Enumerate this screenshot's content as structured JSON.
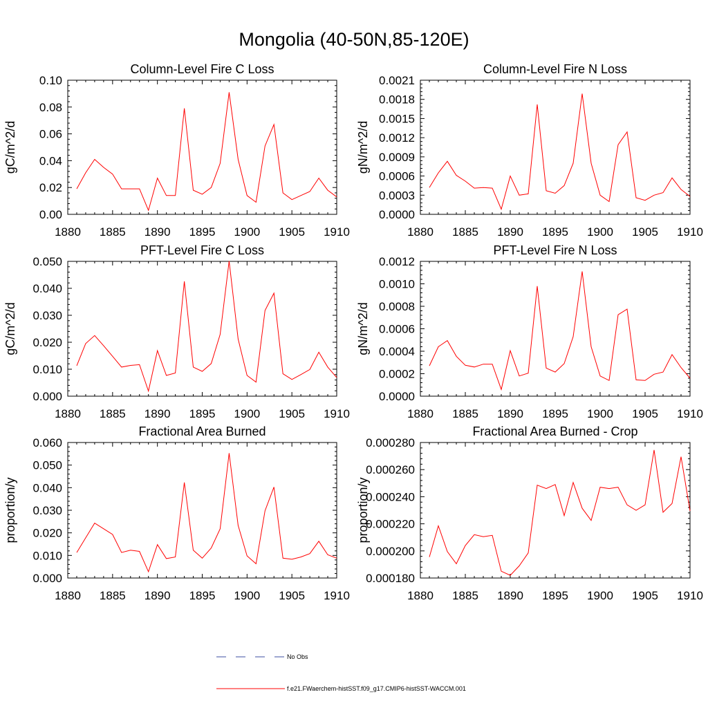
{
  "figure": {
    "title": "Mongolia (40-50N,85-120E)",
    "legend": [
      {
        "label": "No Obs",
        "color": "#3b4ea0",
        "style": "dashed"
      },
      {
        "label": "f.e21.FWaerchem-histSST.f09_g17.CMIP6-histSST-WACCM.001",
        "color": "#ff0000",
        "style": "solid"
      }
    ]
  },
  "chart_data": [
    {
      "type": "line",
      "title": "Column-Level Fire C Loss",
      "ylabel": "gC/m^2/d",
      "xlabel": "",
      "xlim": [
        1880,
        1910
      ],
      "ylim": [
        0,
        0.1
      ],
      "xticks": [
        1880,
        1885,
        1890,
        1895,
        1900,
        1905,
        1910
      ],
      "xtick_labels": [
        "1880",
        "1885",
        "1890",
        "1895",
        "1900",
        "1905",
        "1910"
      ],
      "yticks": [
        0,
        0.02,
        0.04,
        0.06,
        0.08,
        0.1
      ],
      "ytick_labels": [
        "0.00",
        "0.02",
        "0.04",
        "0.06",
        "0.08",
        "0.10"
      ],
      "series": [
        {
          "color": "#ff0000",
          "x": [
            1881,
            1882,
            1883,
            1884,
            1885,
            1886,
            1887,
            1888,
            1889,
            1890,
            1891,
            1892,
            1893,
            1894,
            1895,
            1896,
            1897,
            1898,
            1899,
            1900,
            1901,
            1902,
            1903,
            1904,
            1905,
            1906,
            1907,
            1908,
            1909,
            1910
          ],
          "y": [
            0.019,
            0.031,
            0.041,
            0.035,
            0.03,
            0.019,
            0.019,
            0.019,
            0.003,
            0.027,
            0.014,
            0.014,
            0.079,
            0.018,
            0.015,
            0.02,
            0.038,
            0.091,
            0.041,
            0.014,
            0.009,
            0.051,
            0.067,
            0.016,
            0.011,
            0.014,
            0.017,
            0.027,
            0.018,
            0.013
          ]
        }
      ]
    },
    {
      "type": "line",
      "title": "Column-Level Fire N Loss",
      "ylabel": "gN/m^2/d",
      "xlabel": "",
      "xlim": [
        1880,
        1910
      ],
      "ylim": [
        0,
        0.0021
      ],
      "xticks": [
        1880,
        1885,
        1890,
        1895,
        1900,
        1905,
        1910
      ],
      "xtick_labels": [
        "1880",
        "1885",
        "1890",
        "1895",
        "1900",
        "1905",
        "1910"
      ],
      "yticks": [
        0,
        0.0003,
        0.0006,
        0.0009,
        0.0012,
        0.0015,
        0.0018,
        0.0021
      ],
      "ytick_labels": [
        "0.0000",
        "0.0003",
        "0.0006",
        "0.0009",
        "0.0012",
        "0.0015",
        "0.0018",
        "0.0021"
      ],
      "series": [
        {
          "color": "#ff0000",
          "x": [
            1881,
            1882,
            1883,
            1884,
            1885,
            1886,
            1887,
            1888,
            1889,
            1890,
            1891,
            1892,
            1893,
            1894,
            1895,
            1896,
            1897,
            1898,
            1899,
            1900,
            1901,
            1902,
            1903,
            1904,
            1905,
            1906,
            1907,
            1908,
            1909,
            1910
          ],
          "y": [
            0.00042,
            0.00065,
            0.00083,
            0.00061,
            0.00052,
            0.00041,
            0.00042,
            0.00041,
            8e-05,
            0.0006,
            0.0003,
            0.00032,
            0.00172,
            0.00037,
            0.00033,
            0.00045,
            0.0008,
            0.00189,
            0.0008,
            0.0003,
            0.0002,
            0.00109,
            0.00129,
            0.00026,
            0.00022,
            0.0003,
            0.00034,
            0.00057,
            0.00039,
            0.00028
          ]
        }
      ]
    },
    {
      "type": "line",
      "title": "PFT-Level Fire C Loss",
      "ylabel": "gC/m^2/d",
      "xlabel": "",
      "xlim": [
        1880,
        1910
      ],
      "ylim": [
        0,
        0.05
      ],
      "xticks": [
        1880,
        1885,
        1890,
        1895,
        1900,
        1905,
        1910
      ],
      "xtick_labels": [
        "1880",
        "1885",
        "1890",
        "1895",
        "1900",
        "1905",
        "1910"
      ],
      "yticks": [
        0,
        0.01,
        0.02,
        0.03,
        0.04,
        0.05
      ],
      "ytick_labels": [
        "0.000",
        "0.010",
        "0.020",
        "0.030",
        "0.040",
        "0.050"
      ],
      "series": [
        {
          "color": "#ff0000",
          "x": [
            1881,
            1882,
            1883,
            1884,
            1885,
            1886,
            1887,
            1888,
            1889,
            1890,
            1891,
            1892,
            1893,
            1894,
            1895,
            1896,
            1897,
            1898,
            1899,
            1900,
            1901,
            1902,
            1903,
            1904,
            1905,
            1906,
            1907,
            1908,
            1909,
            1910
          ],
          "y": [
            0.0113,
            0.0195,
            0.0225,
            0.0187,
            0.0148,
            0.0108,
            0.0114,
            0.0117,
            0.0019,
            0.0169,
            0.0077,
            0.0086,
            0.0426,
            0.0108,
            0.0092,
            0.0121,
            0.0229,
            0.0501,
            0.0212,
            0.0077,
            0.0052,
            0.0318,
            0.0382,
            0.0083,
            0.0062,
            0.008,
            0.0099,
            0.0163,
            0.0108,
            0.0069
          ]
        }
      ]
    },
    {
      "type": "line",
      "title": "PFT-Level Fire N Loss",
      "ylabel": "gN/m^2/d",
      "xlabel": "",
      "xlim": [
        1880,
        1910
      ],
      "ylim": [
        0,
        0.0012
      ],
      "xticks": [
        1880,
        1885,
        1890,
        1895,
        1900,
        1905,
        1910
      ],
      "xtick_labels": [
        "1880",
        "1885",
        "1890",
        "1895",
        "1900",
        "1905",
        "1910"
      ],
      "yticks": [
        0,
        0.0002,
        0.0004,
        0.0006,
        0.0008,
        0.001,
        0.0012
      ],
      "ytick_labels": [
        "0.0000",
        "0.0002",
        "0.0004",
        "0.0006",
        "0.0008",
        "0.0010",
        "0.0012"
      ],
      "series": [
        {
          "color": "#ff0000",
          "x": [
            1881,
            1882,
            1883,
            1884,
            1885,
            1886,
            1887,
            1888,
            1889,
            1890,
            1891,
            1892,
            1893,
            1894,
            1895,
            1896,
            1897,
            1898,
            1899,
            1900,
            1901,
            1902,
            1903,
            1904,
            1905,
            1906,
            1907,
            1908,
            1909,
            1910
          ],
          "y": [
            0.00027,
            0.00044,
            0.000495,
            0.000355,
            0.000275,
            0.00026,
            0.000285,
            0.000285,
            6e-05,
            0.000405,
            0.00018,
            0.000205,
            0.00098,
            0.00025,
            0.000215,
            0.00029,
            0.00053,
            0.00111,
            0.00044,
            0.00018,
            0.00014,
            0.000725,
            0.000775,
            0.000145,
            0.00014,
            0.000195,
            0.000215,
            0.00037,
            0.000255,
            0.00016
          ]
        }
      ]
    },
    {
      "type": "line",
      "title": "Fractional Area Burned",
      "ylabel": "proportion/y",
      "xlabel": "",
      "xlim": [
        1880,
        1910
      ],
      "ylim": [
        0,
        0.06
      ],
      "xticks": [
        1880,
        1885,
        1890,
        1895,
        1900,
        1905,
        1910
      ],
      "xtick_labels": [
        "1880",
        "1885",
        "1890",
        "1895",
        "1900",
        "1905",
        "1910"
      ],
      "yticks": [
        0,
        0.01,
        0.02,
        0.03,
        0.04,
        0.05,
        0.06
      ],
      "ytick_labels": [
        "0.000",
        "0.010",
        "0.020",
        "0.030",
        "0.040",
        "0.050",
        "0.060"
      ],
      "series": [
        {
          "color": "#ff0000",
          "x": [
            1881,
            1882,
            1883,
            1884,
            1885,
            1886,
            1887,
            1888,
            1889,
            1890,
            1891,
            1892,
            1893,
            1894,
            1895,
            1896,
            1897,
            1898,
            1899,
            1900,
            1901,
            1902,
            1903,
            1904,
            1905,
            1906,
            1907,
            1908,
            1909,
            1910
          ],
          "y": [
            0.0113,
            0.0178,
            0.0243,
            0.0218,
            0.0193,
            0.0113,
            0.0123,
            0.0118,
            0.0028,
            0.0148,
            0.0086,
            0.0093,
            0.0423,
            0.0123,
            0.0088,
            0.0133,
            0.0218,
            0.0553,
            0.0233,
            0.0098,
            0.0063,
            0.0298,
            0.0403,
            0.0088,
            0.0083,
            0.0093,
            0.0108,
            0.0163,
            0.0103,
            0.0088
          ]
        }
      ]
    },
    {
      "type": "line",
      "title": "Fractional Area Burned - Crop",
      "ylabel": "proportion/y",
      "xlabel": "",
      "xlim": [
        1880,
        1910
      ],
      "ylim": [
        0.00018,
        0.00028
      ],
      "xticks": [
        1880,
        1885,
        1890,
        1895,
        1900,
        1905,
        1910
      ],
      "xtick_labels": [
        "1880",
        "1885",
        "1890",
        "1895",
        "1900",
        "1905",
        "1910"
      ],
      "yticks": [
        0.00018,
        0.0002,
        0.00022,
        0.00024,
        0.00026,
        0.00028
      ],
      "ytick_labels": [
        "0.000180",
        "0.000200",
        "0.000220",
        "0.000240",
        "0.000260",
        "0.000280"
      ],
      "series": [
        {
          "color": "#ff0000",
          "x": [
            1881,
            1882,
            1883,
            1884,
            1885,
            1886,
            1887,
            1888,
            1889,
            1890,
            1891,
            1892,
            1893,
            1894,
            1895,
            1896,
            1897,
            1898,
            1899,
            1900,
            1901,
            1902,
            1903,
            1904,
            1905,
            1906,
            1907,
            1908,
            1909,
            1910
          ],
          "y": [
            0.0001955,
            0.0002185,
            0.0001995,
            0.0001905,
            0.000204,
            0.000212,
            0.0002105,
            0.0002115,
            0.000185,
            0.000182,
            0.000189,
            0.0001985,
            0.0002485,
            0.000246,
            0.000249,
            0.000226,
            0.0002505,
            0.0002315,
            0.0002225,
            0.000247,
            0.000246,
            0.000247,
            0.000234,
            0.00023,
            0.000234,
            0.0002745,
            0.0002285,
            0.000235,
            0.0002695,
            0.0002295
          ]
        }
      ]
    }
  ]
}
